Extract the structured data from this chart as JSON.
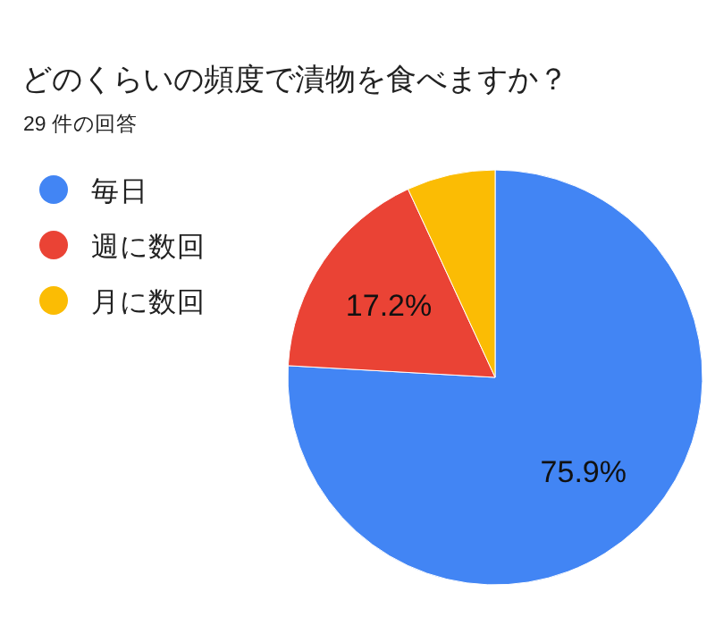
{
  "chart_data": {
    "type": "pie",
    "title": "どのくらいの頻度で漬物を食べますか？",
    "subtitle": "29 件の回答",
    "categories": [
      "毎日",
      "週に数回",
      "月に数回"
    ],
    "values": [
      75.9,
      17.2,
      6.9
    ],
    "colors": [
      "#4285f4",
      "#ea4335",
      "#fbbc04"
    ],
    "value_labels": [
      "75.9%",
      "17.2%",
      null
    ],
    "legend": "left"
  }
}
